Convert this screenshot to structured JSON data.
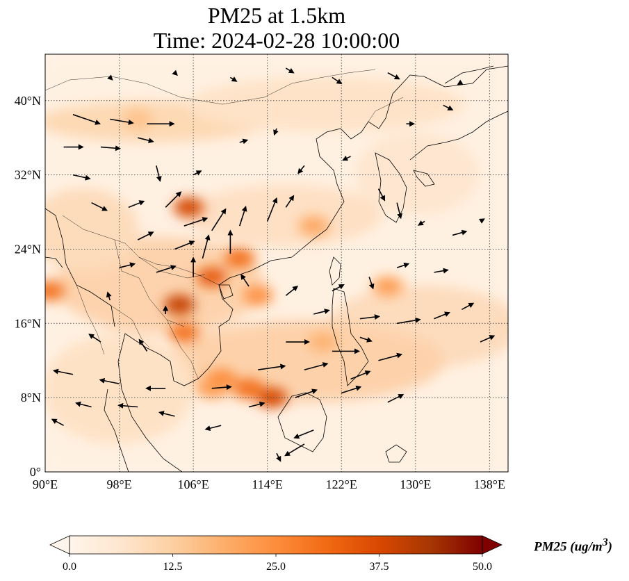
{
  "title": {
    "line1": "PM25 at 1.5km",
    "line2": "Time: 2024-02-28 10:00:00"
  },
  "map": {
    "extent": {
      "lon_min": 90,
      "lon_max": 140,
      "lat_min": 0,
      "lat_max": 45
    },
    "lat_ticks": [
      {
        "value": 0,
        "label": "0°"
      },
      {
        "value": 8,
        "label": "8°N"
      },
      {
        "value": 16,
        "label": "16°N"
      },
      {
        "value": 24,
        "label": "24°N"
      },
      {
        "value": 32,
        "label": "32°N"
      },
      {
        "value": 40,
        "label": "40°N"
      }
    ],
    "lon_ticks": [
      {
        "value": 90,
        "label": "90°E"
      },
      {
        "value": 98,
        "label": "98°E"
      },
      {
        "value": 106,
        "label": "106°E"
      },
      {
        "value": 114,
        "label": "114°E"
      },
      {
        "value": 122,
        "label": "122°E"
      },
      {
        "value": 130,
        "label": "130°E"
      },
      {
        "value": 138,
        "label": "138°E"
      }
    ],
    "grid": true
  },
  "colorbar": {
    "ticks": [
      "0.0",
      "12.5",
      "25.0",
      "37.5",
      "50.0"
    ],
    "min": 0,
    "max": 50,
    "extend": "both",
    "colors": [
      "#fff5eb",
      "#fee6ce",
      "#fdd0a2",
      "#fdae6b",
      "#fd8d3c",
      "#f16913",
      "#d94801",
      "#a63603",
      "#7f0000"
    ],
    "unit_label": "PM25 (ug/m",
    "unit_sup": "3",
    "unit_close": ")"
  },
  "pm25_hotspots": [
    {
      "lon": 105.5,
      "lat": 28.5,
      "value": 38
    },
    {
      "lon": 104.5,
      "lat": 18.0,
      "value": 40
    },
    {
      "lon": 108.0,
      "lat": 21.0,
      "value": 34
    },
    {
      "lon": 111.0,
      "lat": 23.0,
      "value": 30
    },
    {
      "lon": 90.5,
      "lat": 19.5,
      "value": 30
    },
    {
      "lon": 113.0,
      "lat": 19.0,
      "value": 24
    },
    {
      "lon": 105.0,
      "lat": 15.0,
      "value": 30
    },
    {
      "lon": 114.5,
      "lat": 8.0,
      "value": 38
    },
    {
      "lon": 112.0,
      "lat": 9.0,
      "value": 30
    },
    {
      "lon": 109.0,
      "lat": 10.0,
      "value": 26
    },
    {
      "lon": 127.0,
      "lat": 20.0,
      "value": 22
    },
    {
      "lon": 119.0,
      "lat": 26.5,
      "value": 20
    },
    {
      "lon": 100.0,
      "lat": 38.0,
      "value": 15
    },
    {
      "lon": 108.0,
      "lat": 9.0,
      "value": 22
    },
    {
      "lon": 120.0,
      "lat": 14.0,
      "value": 18
    }
  ],
  "wind_vectors": [
    {
      "lon": 93,
      "lat": 38.5,
      "u": 3.5,
      "v": -1.2
    },
    {
      "lon": 97,
      "lat": 38,
      "u": 3.0,
      "v": -0.5
    },
    {
      "lon": 101,
      "lat": 37.5,
      "u": 3.5,
      "v": 0.0
    },
    {
      "lon": 92,
      "lat": 35,
      "u": 2.5,
      "v": 0.0
    },
    {
      "lon": 96,
      "lat": 35,
      "u": 2.5,
      "v": -0.2
    },
    {
      "lon": 100,
      "lat": 36,
      "u": 2.0,
      "v": -0.5
    },
    {
      "lon": 102,
      "lat": 33,
      "u": 0.5,
      "v": -2.0
    },
    {
      "lon": 93,
      "lat": 32,
      "u": 2.2,
      "v": -0.5
    },
    {
      "lon": 95,
      "lat": 29,
      "u": 2.0,
      "v": -1.0
    },
    {
      "lon": 99,
      "lat": 28.5,
      "u": 2.0,
      "v": 0.8
    },
    {
      "lon": 103,
      "lat": 28.5,
      "u": 2.0,
      "v": 2.0
    },
    {
      "lon": 105,
      "lat": 26.5,
      "u": 3.0,
      "v": 1.0
    },
    {
      "lon": 108,
      "lat": 26,
      "u": 1.8,
      "v": 2.8
    },
    {
      "lon": 111,
      "lat": 26.5,
      "u": 0.8,
      "v": 2.5
    },
    {
      "lon": 114,
      "lat": 27,
      "u": 1.2,
      "v": 3.0
    },
    {
      "lon": 116,
      "lat": 28.5,
      "u": 1.0,
      "v": 1.5
    },
    {
      "lon": 100,
      "lat": 25,
      "u": 2.0,
      "v": 1.0
    },
    {
      "lon": 104,
      "lat": 24,
      "u": 2.5,
      "v": 1.0
    },
    {
      "lon": 107,
      "lat": 23,
      "u": 0.8,
      "v": 3.0
    },
    {
      "lon": 110,
      "lat": 23.5,
      "u": 0.0,
      "v": 3.0
    },
    {
      "lon": 98,
      "lat": 22,
      "u": 2.0,
      "v": 0.5
    },
    {
      "lon": 102,
      "lat": 21.5,
      "u": 2.5,
      "v": 0.8
    },
    {
      "lon": 106,
      "lat": 21,
      "u": 0.0,
      "v": 2.5
    },
    {
      "lon": 112,
      "lat": 20,
      "u": -1.0,
      "v": 1.5
    },
    {
      "lon": 116,
      "lat": 19,
      "u": 1.5,
      "v": 1.2
    },
    {
      "lon": 121,
      "lat": 19.5,
      "u": 1.5,
      "v": 0.8
    },
    {
      "lon": 125,
      "lat": 21,
      "u": 0.5,
      "v": -1.5
    },
    {
      "lon": 128,
      "lat": 22,
      "u": 1.5,
      "v": 0.5
    },
    {
      "lon": 132,
      "lat": 21.5,
      "u": 1.8,
      "v": 0.3
    },
    {
      "lon": 135,
      "lat": 17.5,
      "u": 1.5,
      "v": 0.8
    },
    {
      "lon": 137,
      "lat": 14,
      "u": 1.8,
      "v": 0.8
    },
    {
      "lon": 119,
      "lat": 17,
      "u": 2.0,
      "v": 0.5
    },
    {
      "lon": 124,
      "lat": 16.5,
      "u": 2.5,
      "v": 0.3
    },
    {
      "lon": 128,
      "lat": 16,
      "u": 3.0,
      "v": 0.5
    },
    {
      "lon": 132,
      "lat": 16.5,
      "u": 2.0,
      "v": 0.8
    },
    {
      "lon": 116,
      "lat": 14,
      "u": 3.0,
      "v": 0.0
    },
    {
      "lon": 121,
      "lat": 13,
      "u": 3.5,
      "v": 0.0
    },
    {
      "lon": 126,
      "lat": 12,
      "u": 3.0,
      "v": 0.8
    },
    {
      "lon": 113,
      "lat": 11,
      "u": 3.5,
      "v": 0.5
    },
    {
      "lon": 118,
      "lat": 11,
      "u": 3.0,
      "v": 0.8
    },
    {
      "lon": 123,
      "lat": 10,
      "u": 2.5,
      "v": 1.0
    },
    {
      "lon": 108,
      "lat": 9,
      "u": 2.5,
      "v": 0.2
    },
    {
      "lon": 112,
      "lat": 7,
      "u": 2.0,
      "v": 0.5
    },
    {
      "lon": 117,
      "lat": 8,
      "u": 2.8,
      "v": 1.0
    },
    {
      "lon": 122,
      "lat": 8.5,
      "u": 2.5,
      "v": 0.8
    },
    {
      "lon": 127,
      "lat": 7.5,
      "u": 2.0,
      "v": 1.0
    },
    {
      "lon": 103,
      "lat": 9,
      "u": -2.5,
      "v": 0.0
    },
    {
      "lon": 98,
      "lat": 9.5,
      "u": -2.5,
      "v": 0.5
    },
    {
      "lon": 93,
      "lat": 10.5,
      "u": -2.5,
      "v": 0.5
    },
    {
      "lon": 95,
      "lat": 7,
      "u": -2.0,
      "v": 0.5
    },
    {
      "lon": 100,
      "lat": 7,
      "u": -2.5,
      "v": 0.2
    },
    {
      "lon": 92,
      "lat": 5,
      "u": -1.5,
      "v": 0.8
    },
    {
      "lon": 104,
      "lat": 6,
      "u": -2.0,
      "v": 0.5
    },
    {
      "lon": 109,
      "lat": 5,
      "u": -2.0,
      "v": -0.5
    },
    {
      "lon": 119,
      "lat": 4.5,
      "u": -2.5,
      "v": -1.0
    },
    {
      "lon": 118,
      "lat": 3,
      "u": -2.5,
      "v": -1.5
    },
    {
      "lon": 115,
      "lat": 2,
      "u": 0.5,
      "v": -1.0
    },
    {
      "lon": 124,
      "lat": 14.5,
      "u": 1.5,
      "v": -0.5
    },
    {
      "lon": 118,
      "lat": 33,
      "u": -0.8,
      "v": -1.0
    },
    {
      "lon": 123,
      "lat": 34,
      "u": -1.0,
      "v": -0.5
    },
    {
      "lon": 126,
      "lat": 30.5,
      "u": 0.8,
      "v": -1.5
    },
    {
      "lon": 128,
      "lat": 29,
      "u": 0.5,
      "v": -2.0
    },
    {
      "lon": 131,
      "lat": 27,
      "u": -0.8,
      "v": -0.5
    },
    {
      "lon": 134,
      "lat": 25.5,
      "u": 1.8,
      "v": 0.5
    },
    {
      "lon": 137,
      "lat": 27,
      "u": 0.5,
      "v": 0.3
    },
    {
      "lon": 97,
      "lat": 42.5,
      "u": 0.3,
      "v": -0.3
    },
    {
      "lon": 104,
      "lat": 43,
      "u": 0.3,
      "v": -0.3
    },
    {
      "lon": 110,
      "lat": 42.5,
      "u": 0.8,
      "v": -0.5
    },
    {
      "lon": 116,
      "lat": 43.5,
      "u": 1.0,
      "v": -0.6
    },
    {
      "lon": 121,
      "lat": 42.5,
      "u": 1.2,
      "v": -0.8
    },
    {
      "lon": 127,
      "lat": 43,
      "u": 1.5,
      "v": -0.8
    },
    {
      "lon": 135,
      "lat": 42,
      "u": -0.5,
      "v": -0.3
    },
    {
      "lon": 111,
      "lat": 35.5,
      "u": 1.0,
      "v": 0.3
    },
    {
      "lon": 115,
      "lat": 37,
      "u": -0.3,
      "v": -0.8
    },
    {
      "lon": 129,
      "lat": 37.5,
      "u": 1.0,
      "v": 0.0
    },
    {
      "lon": 133,
      "lat": 39.5,
      "u": 1.2,
      "v": -0.6
    },
    {
      "lon": 106,
      "lat": 32,
      "u": 1.0,
      "v": 0.5
    },
    {
      "lon": 96,
      "lat": 14,
      "u": -1.5,
      "v": 1.0
    },
    {
      "lon": 101,
      "lat": 13,
      "u": -1.0,
      "v": 1.5
    },
    {
      "lon": 97,
      "lat": 18.5,
      "u": -0.3,
      "v": 1.0
    },
    {
      "lon": 103,
      "lat": 17,
      "u": 0.0,
      "v": 1.0
    }
  ]
}
